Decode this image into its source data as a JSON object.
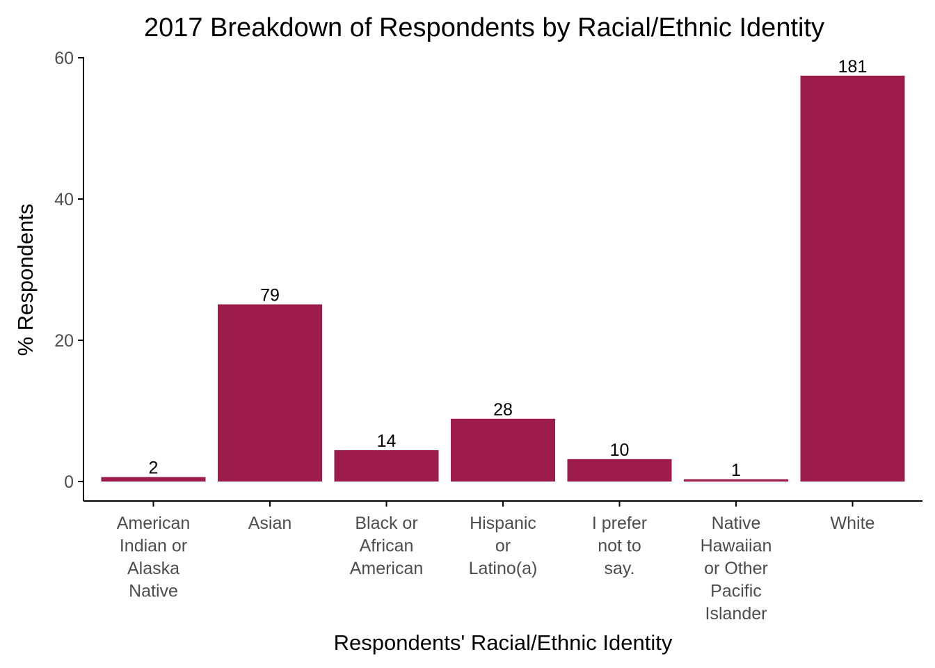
{
  "chart_data": {
    "type": "bar",
    "title": "2017 Breakdown of Respondents by Racial/Ethnic Identity",
    "xlabel": "Respondents' Racial/Ethnic Identity",
    "ylabel": "% Respondents",
    "ylim": [
      0,
      60
    ],
    "yticks": [
      0,
      20,
      40,
      60
    ],
    "grid": false,
    "bar_color": "#9e1c4c",
    "categories": [
      [
        "American",
        "Indian or",
        "Alaska",
        "Native"
      ],
      [
        "Asian"
      ],
      [
        "Black or",
        "African",
        "American"
      ],
      [
        "Hispanic",
        "or",
        "Latino(a)"
      ],
      [
        "I prefer",
        "not to",
        "say."
      ],
      [
        "Native",
        "Hawaiian",
        "or Other",
        "Pacific",
        "Islander"
      ],
      [
        "White"
      ]
    ],
    "values": [
      0.63,
      25.08,
      4.44,
      8.89,
      3.17,
      0.32,
      57.46
    ],
    "data_labels": [
      "2",
      "79",
      "14",
      "28",
      "10",
      "1",
      "181"
    ]
  }
}
